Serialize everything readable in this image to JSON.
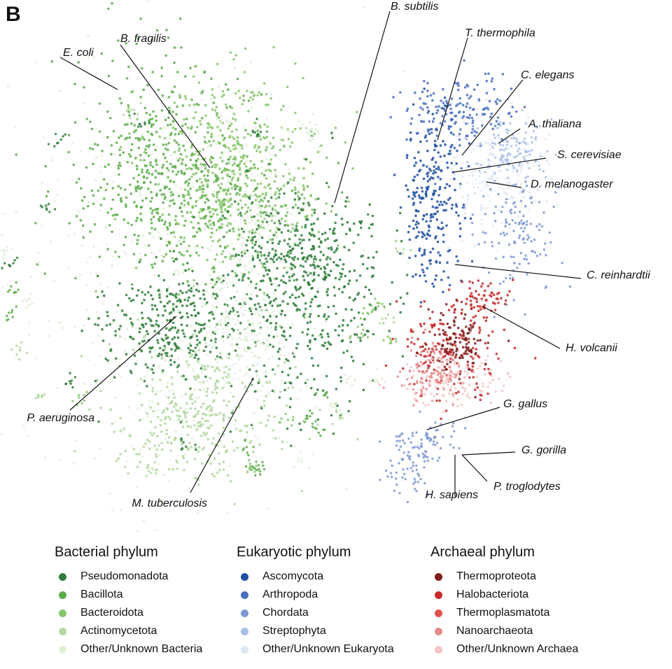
{
  "panel_label": "B",
  "chart_data": {
    "type": "scatter",
    "title": "",
    "xlabel": "",
    "ylabel": "",
    "grid": false,
    "legend_placement": "bottom",
    "annotations": [
      "E. coli",
      "B. fragilis",
      "B. subtilis",
      "T. thermophila",
      "C. elegans",
      "A. thaliana",
      "S. cerevisiae",
      "D. melanogaster",
      "C. reinhardtii",
      "H. volcanii",
      "P. aeruginosa",
      "G. gallus",
      "G. gorilla",
      "M. tuberculosis",
      "P. troglodytes",
      "H. sapiens"
    ],
    "legend_groups": [
      {
        "title": "Bacterial phylum",
        "entries": [
          {
            "name": "Pseudomonadota",
            "color": "#2e7d3a"
          },
          {
            "name": "Bacillota",
            "color": "#5cad4a"
          },
          {
            "name": "Bacteroidota",
            "color": "#86c56a"
          },
          {
            "name": "Actinomycetota",
            "color": "#b2d7a0"
          },
          {
            "name": "Other/Unknown Bacteria",
            "color": "#e1efd8"
          }
        ]
      },
      {
        "title": "Eukaryotic phylum",
        "entries": [
          {
            "name": "Ascomycota",
            "color": "#1f4fa3"
          },
          {
            "name": "Arthropoda",
            "color": "#4a6fbe"
          },
          {
            "name": "Chordata",
            "color": "#7b97d2"
          },
          {
            "name": "Streptophyta",
            "color": "#a9bfe6"
          },
          {
            "name": "Other/Unknown Eukaryota",
            "color": "#dde8f6"
          }
        ]
      },
      {
        "title": "Archaeal phylum",
        "entries": [
          {
            "name": "Thermoproteota",
            "color": "#7f1b1b"
          },
          {
            "name": "Halobacteriota",
            "color": "#c62a2a"
          },
          {
            "name": "Thermoplasmatota",
            "color": "#e05252"
          },
          {
            "name": "Nanoarchaeota",
            "color": "#e88b8b"
          },
          {
            "name": "Other/Unknown Archaea",
            "color": "#f4c4c4"
          }
        ]
      }
    ]
  }
}
